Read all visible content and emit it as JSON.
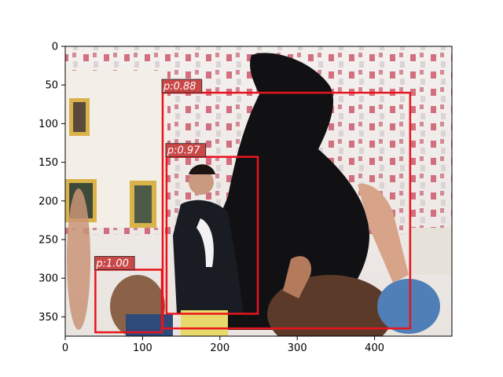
{
  "figure": {
    "image_content": "photo: rider in dark suit on a rearing black horse, surrounded by a crowd with raised hands, white buildings with yellow window frames and red-and-white bunting in the background"
  },
  "axes": {
    "xlim": [
      0,
      500
    ],
    "ylim": [
      375,
      0
    ],
    "x_ticks": [
      {
        "value": 0,
        "label": "0"
      },
      {
        "value": 100,
        "label": "100"
      },
      {
        "value": 200,
        "label": "200"
      },
      {
        "value": 300,
        "label": "300"
      },
      {
        "value": 400,
        "label": "400"
      }
    ],
    "y_ticks": [
      {
        "value": 0,
        "label": "0"
      },
      {
        "value": 50,
        "label": "50"
      },
      {
        "value": 100,
        "label": "100"
      },
      {
        "value": 150,
        "label": "150"
      },
      {
        "value": 200,
        "label": "200"
      },
      {
        "value": 250,
        "label": "250"
      },
      {
        "value": 300,
        "label": "300"
      },
      {
        "value": 350,
        "label": "350"
      }
    ]
  },
  "detections": [
    {
      "label": "p:0.88",
      "x0": 126,
      "y0": 60,
      "x1": 446,
      "y1": 365
    },
    {
      "label": "p:0.97",
      "x0": 131,
      "y0": 143,
      "x1": 249,
      "y1": 346
    },
    {
      "label": "p:1.00",
      "x0": 39,
      "y0": 289,
      "x1": 125,
      "y1": 370
    }
  ],
  "colors": {
    "box": "#e8141c",
    "label_bg": "#c94848",
    "label_text": "#ffffff"
  }
}
